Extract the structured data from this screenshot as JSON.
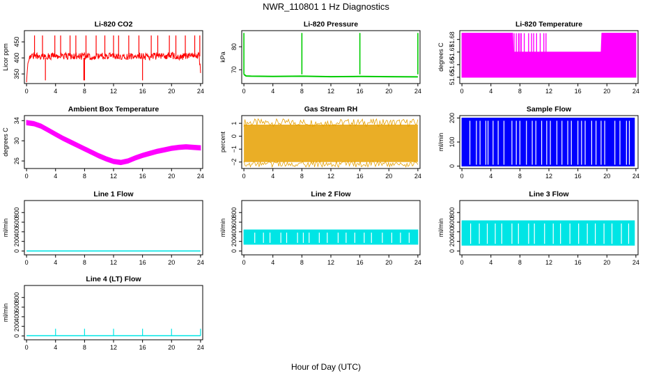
{
  "figure": {
    "title": "NWR_110801  1 Hz Diagnostics",
    "xlabel": "Hour of Day (UTC)"
  },
  "chart_data": [
    {
      "id": "co2",
      "type": "line",
      "title": "Li-820 CO2",
      "ylabel": "Licor ppm",
      "color": "#ff0000",
      "xlim": [
        -0.3,
        24.3
      ],
      "ylim": [
        320,
        485
      ],
      "xticks": [
        0,
        4,
        8,
        12,
        16,
        20,
        24
      ],
      "yticks": [
        350,
        400,
        450
      ],
      "x": [
        0,
        0.25,
        0.5,
        1,
        2,
        3,
        4,
        5,
        6,
        7,
        8,
        9,
        10,
        11,
        12,
        13,
        14,
        15,
        16,
        17,
        18,
        19,
        20,
        21,
        22,
        23,
        23.8,
        24
      ],
      "y": [
        335,
        395,
        405,
        408,
        406,
        404,
        407,
        405,
        406,
        404,
        406,
        404,
        405,
        407,
        406,
        405,
        404,
        406,
        405,
        404,
        406,
        405,
        407,
        404,
        406,
        405,
        407,
        360
      ],
      "spikes_up": [
        1.1,
        2.2,
        3.9,
        4.7,
        6.0,
        6.8,
        8.2,
        9.6,
        10.8,
        12.0,
        12.7,
        14.1,
        15.5,
        17.2,
        18.1,
        19.7,
        20.6,
        21.9,
        23.2,
        23.9
      ],
      "spike_up_value": 470,
      "spikes_down": [
        2.6,
        7.9,
        8.0,
        16.0
      ],
      "spike_down_value": 330
    },
    {
      "id": "pressure",
      "type": "line",
      "title": "Li-820 Pressure",
      "ylabel": "kPa",
      "color": "#00cc00",
      "xlim": [
        -0.3,
        24.3
      ],
      "ylim": [
        64,
        87
      ],
      "xticks": [
        0,
        4,
        8,
        12,
        16,
        20,
        24
      ],
      "yticks": [
        70,
        80
      ],
      "x": [
        0,
        0.3,
        1,
        4,
        8,
        12,
        16,
        20,
        24
      ],
      "y": [
        68,
        67.3,
        67.2,
        67.1,
        67.2,
        67.0,
        67.1,
        67.0,
        66.9
      ],
      "spikes_up": [
        0.0,
        8.0,
        16.0,
        24.0
      ],
      "spike_up_value": 86
    },
    {
      "id": "li820temp",
      "type": "area",
      "title": "Li-820 Temperature",
      "ylabel": "degrees C",
      "color": "#ff00ff",
      "xlim": [
        -0.3,
        24.3
      ],
      "ylim": [
        51.645,
        51.687
      ],
      "xticks": [
        0,
        4,
        8,
        12,
        16,
        20,
        24
      ],
      "yticks": [
        51.65,
        51.66,
        51.67,
        51.68
      ],
      "x": [
        0,
        7.0,
        7.1,
        11.9,
        12.0,
        19.2,
        19.3,
        24
      ],
      "y": [
        51.685,
        51.685,
        51.67,
        51.67,
        51.67,
        51.67,
        51.685,
        51.685
      ],
      "base": 51.65,
      "flicker_x": [
        7.2,
        7.5,
        7.8,
        8.0,
        8.2,
        8.6,
        9.2,
        9.6,
        9.9,
        10.3,
        10.8,
        11.3,
        11.6,
        19.4,
        19.7,
        19.9,
        20.3,
        20.6,
        21.0,
        21.3,
        21.8,
        22.3,
        22.7,
        23.1,
        23.4,
        23.7
      ],
      "flicker_value": 51.685
    },
    {
      "id": "ambient",
      "type": "line",
      "title": "Ambient Box Temperature",
      "ylabel": "degrees C",
      "color": "#ff00ff",
      "xlim": [
        -0.3,
        24.3
      ],
      "ylim": [
        24.5,
        35
      ],
      "xticks": [
        0,
        4,
        8,
        12,
        16,
        20,
        24
      ],
      "yticks": [
        26,
        30,
        34
      ],
      "x": [
        0,
        1,
        2,
        3,
        4,
        5,
        6,
        7,
        8,
        9,
        10,
        11,
        12,
        13,
        14,
        15,
        16,
        17,
        18,
        19,
        20,
        21,
        22,
        23,
        24
      ],
      "y": [
        33.6,
        33.4,
        32.9,
        32.1,
        31.3,
        30.5,
        29.8,
        29.1,
        28.4,
        27.7,
        27.0,
        26.4,
        25.9,
        25.7,
        26.0,
        26.6,
        27.1,
        27.5,
        27.9,
        28.2,
        28.5,
        28.7,
        28.8,
        28.7,
        28.6
      ],
      "band": 0.9
    },
    {
      "id": "rh",
      "type": "line",
      "title": "Gas Stream RH",
      "ylabel": "percent",
      "color": "#e6a000",
      "xlim": [
        -0.3,
        24.3
      ],
      "ylim": [
        -2.5,
        1.6
      ],
      "xticks": [
        0,
        4,
        8,
        12,
        16,
        20,
        24
      ],
      "yticks": [
        -2,
        -1,
        0,
        1
      ],
      "x": [
        0,
        4,
        8,
        12,
        16,
        20,
        24
      ],
      "y": [
        -0.4,
        -0.5,
        -0.5,
        -0.4,
        -0.4,
        -0.5,
        -0.4
      ],
      "band_low": -2.0,
      "band_high": 0.9
    },
    {
      "id": "sample",
      "type": "area",
      "title": "Sample Flow",
      "ylabel": "ml/min",
      "color": "#0000ff",
      "xlim": [
        -0.3,
        24.3
      ],
      "ylim": [
        -10,
        210
      ],
      "xticks": [
        0,
        4,
        8,
        12,
        16,
        20,
        24
      ],
      "yticks": [
        0,
        100,
        200
      ],
      "x": [
        0,
        23.8
      ],
      "y": [
        200,
        200
      ],
      "base": 0,
      "gaps_x": [
        1.1,
        2.0,
        2.5,
        3.3,
        3.6,
        4.3,
        5.0,
        5.8,
        6.9,
        7.5,
        8.0,
        8.9,
        9.7,
        10.2,
        11.0,
        11.7,
        12.2,
        13.1,
        13.8,
        14.6,
        15.1,
        16.0,
        16.5,
        17.0,
        17.9,
        18.5,
        19.2,
        19.7,
        21.1,
        21.8,
        22.7,
        23.1
      ]
    },
    {
      "id": "line1",
      "type": "line",
      "title": "Line 1 Flow",
      "ylabel": "ml/min",
      "color": "#00e5e5",
      "xlim": [
        -0.3,
        24.3
      ],
      "ylim": [
        -80,
        1050
      ],
      "xticks": [
        0,
        4,
        8,
        12,
        16,
        20,
        24
      ],
      "yticks": [
        0,
        200,
        400,
        600,
        800
      ],
      "x": [
        0,
        24
      ],
      "y": [
        0,
        0
      ]
    },
    {
      "id": "line2",
      "type": "area",
      "title": "Line 2 Flow",
      "ylabel": "ml/min",
      "color": "#00e5e5",
      "xlim": [
        -0.3,
        24.3
      ],
      "ylim": [
        -80,
        1050
      ],
      "xticks": [
        0,
        4,
        8,
        12,
        16,
        20,
        24
      ],
      "yticks": [
        0,
        200,
        400,
        600,
        800
      ],
      "x": [
        0,
        24
      ],
      "y": [
        440,
        440
      ],
      "base": 140,
      "gaps_x": [
        1.5,
        2.7,
        3.6,
        5.1,
        5.9,
        7.4,
        8.2,
        9.0,
        10.4,
        11.5,
        13.0,
        14.1,
        15.3,
        16.6,
        17.6,
        19.1,
        20.4,
        21.6,
        22.8
      ]
    },
    {
      "id": "line3",
      "type": "area",
      "title": "Line 3 Flow",
      "ylabel": "ml/min",
      "color": "#00e5e5",
      "xlim": [
        -0.3,
        24.3
      ],
      "ylim": [
        -80,
        1050
      ],
      "xticks": [
        0,
        4,
        8,
        12,
        16,
        20,
        24
      ],
      "yticks": [
        0,
        200,
        400,
        600,
        800
      ],
      "x": [
        0,
        23.8
      ],
      "y": [
        630,
        630
      ],
      "base": 120,
      "gaps_x": [
        1.2,
        2.4,
        3.5,
        4.6,
        5.5,
        6.9,
        7.8,
        9.2,
        10.0,
        11.4,
        12.6,
        13.6,
        14.9,
        16.1,
        17.3,
        18.4,
        19.6,
        20.7,
        22.0,
        23.0
      ]
    },
    {
      "id": "line4",
      "type": "line",
      "title": "Line 4 (LT) Flow",
      "ylabel": "ml/min",
      "color": "#00e5e5",
      "xlim": [
        -0.3,
        24.3
      ],
      "ylim": [
        -80,
        1050
      ],
      "xticks": [
        0,
        4,
        8,
        12,
        16,
        20,
        24
      ],
      "yticks": [
        0,
        200,
        400,
        600,
        800
      ],
      "x": [
        0,
        24
      ],
      "y": [
        5,
        5
      ],
      "spikes_up": [
        4,
        8,
        12,
        16,
        20,
        24
      ],
      "spike_up_value": 150
    }
  ]
}
